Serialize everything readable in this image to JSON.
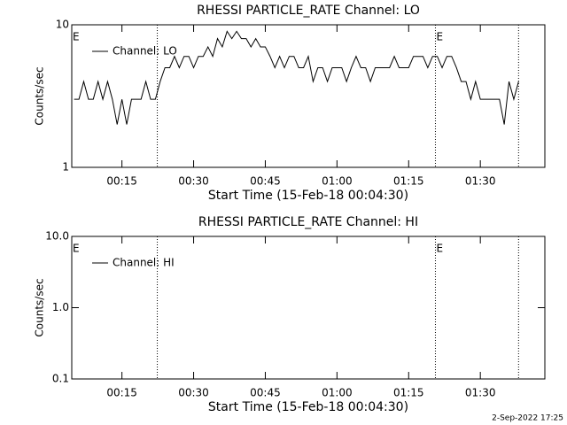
{
  "chart_data": [
    {
      "type": "line",
      "title": "RHESSI PARTICLE_RATE Channel: LO",
      "y_label": "Counts/sec",
      "x_label": "Start Time (15-Feb-18 00:04:30)",
      "log_y": true,
      "ylim": [
        1,
        10
      ],
      "yticks": [
        1,
        10
      ],
      "xlim": [
        4.5,
        103.5
      ],
      "xticks": [
        {
          "value": 15,
          "label": "00:15"
        },
        {
          "value": 30,
          "label": "00:30"
        },
        {
          "value": 45,
          "label": "00:45"
        },
        {
          "value": 60,
          "label": "01:00"
        },
        {
          "value": 75,
          "label": "01:15"
        },
        {
          "value": 90,
          "label": "01:30"
        }
      ],
      "vlines": [
        22.4,
        80.6,
        98.0
      ],
      "flag_x": [
        4.5,
        80.6
      ],
      "flag_labels": [
        "E",
        "E"
      ],
      "x": [
        5,
        6,
        7,
        8,
        9,
        10,
        11,
        12,
        13,
        14,
        15,
        16,
        17,
        18,
        19,
        20,
        21,
        22,
        23,
        24,
        25,
        26,
        27,
        28,
        29,
        30,
        31,
        32,
        33,
        34,
        35,
        36,
        37,
        38,
        39,
        40,
        41,
        42,
        43,
        44,
        45,
        46,
        47,
        48,
        49,
        50,
        51,
        52,
        53,
        54,
        55,
        56,
        57,
        58,
        59,
        60,
        61,
        62,
        63,
        64,
        65,
        66,
        67,
        68,
        69,
        70,
        71,
        72,
        73,
        74,
        75,
        76,
        77,
        78,
        79,
        80,
        81,
        82,
        83,
        84,
        85,
        86,
        87,
        88,
        89,
        90,
        91,
        92,
        93,
        94,
        95,
        96,
        97,
        98
      ],
      "series": [
        {
          "name": "Channel: LO",
          "color": "#000000",
          "values": [
            3,
            3,
            4,
            3,
            3,
            4,
            3,
            4,
            3,
            2,
            3,
            2,
            3,
            3,
            3,
            4,
            3,
            3,
            4,
            5,
            5,
            6,
            5,
            6,
            6,
            5,
            6,
            6,
            7,
            6,
            8,
            7,
            9,
            8,
            9,
            8,
            8,
            7,
            8,
            7,
            7,
            6,
            5,
            6,
            5,
            6,
            6,
            5,
            5,
            6,
            4,
            5,
            5,
            4,
            5,
            5,
            5,
            4,
            5,
            6,
            5,
            5,
            4,
            5,
            5,
            5,
            5,
            6,
            5,
            5,
            5,
            6,
            6,
            6,
            5,
            6,
            6,
            5,
            6,
            6,
            5,
            4,
            4,
            3,
            4,
            3,
            3,
            3,
            3,
            3,
            2,
            4,
            3,
            4
          ]
        }
      ]
    },
    {
      "type": "line",
      "title": "RHESSI PARTICLE_RATE Channel: HI",
      "y_label": "Counts/sec",
      "x_label": "Start Time (15-Feb-18 00:04:30)",
      "log_y": true,
      "ylim": [
        0.1,
        10
      ],
      "yticks": [
        {
          "value": 0.1,
          "label": "0.1"
        },
        {
          "value": 1,
          "label": "1.0"
        },
        {
          "value": 10,
          "label": "10.0"
        }
      ],
      "xlim": [
        4.5,
        103.5
      ],
      "xticks": [
        {
          "value": 15,
          "label": "00:15"
        },
        {
          "value": 30,
          "label": "00:30"
        },
        {
          "value": 45,
          "label": "00:45"
        },
        {
          "value": 60,
          "label": "01:00"
        },
        {
          "value": 75,
          "label": "01:15"
        },
        {
          "value": 90,
          "label": "01:30"
        }
      ],
      "vlines": [
        22.4,
        80.6,
        98.0
      ],
      "flag_x": [
        4.5,
        80.6
      ],
      "flag_labels": [
        "E",
        "E"
      ],
      "x": [],
      "series": [
        {
          "name": "Channel: HI",
          "color": "#000000",
          "values": []
        }
      ]
    }
  ],
  "footer": "2-Sep-2022 17:25"
}
